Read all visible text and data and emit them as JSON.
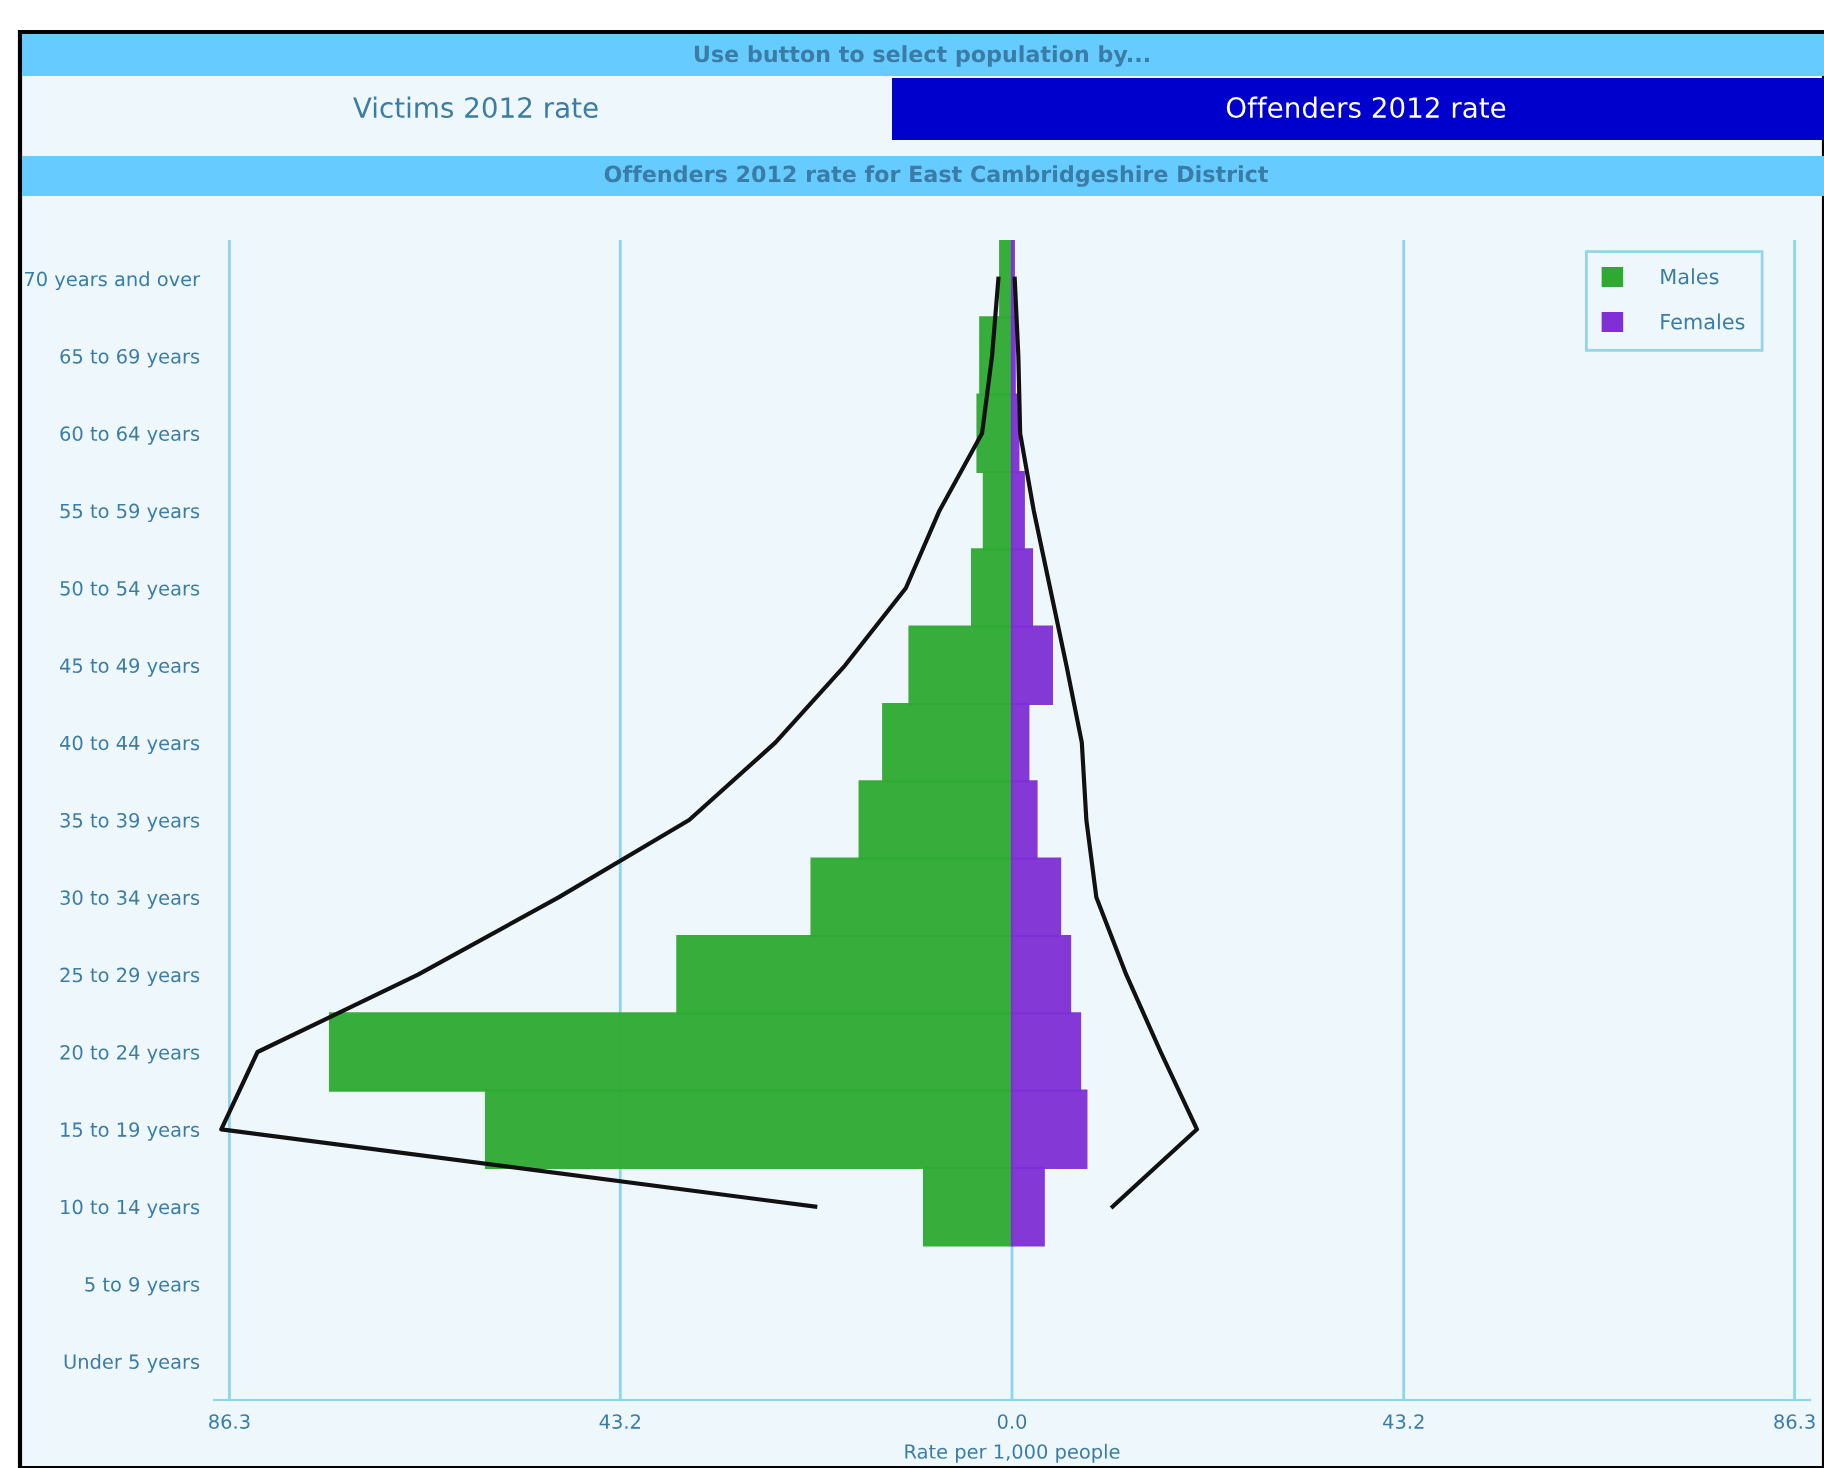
{
  "chart_data": {
    "type": "bar",
    "orientation": "horizontal",
    "title": "Offenders 2012 rate for East Cambridgeshire District",
    "annotations": [
      "Use button to select population by...",
      "Victims 2012 rate",
      "Offenders 2012 rate"
    ],
    "xlabel": "Rate per 1,000 people",
    "categories": [
      "70 years and over",
      "65 to 69 years",
      "60 to 64 years",
      "55 to 59 years",
      "50 to 54 years",
      "45 to 49 years",
      "40 to 44 years",
      "35 to 39 years",
      "30 to 34 years",
      "25 to 29 years",
      "20 to 24 years",
      "15 to 19 years",
      "10 to 14 years",
      "5 to 9 years",
      "Under 5 years"
    ],
    "series": [
      {
        "name": "Males",
        "color": "#2eaa32",
        "values": [
          -1.3,
          -3.5,
          -3.8,
          -3.1,
          -4.4,
          -11.3,
          -14.2,
          -16.8,
          -22.1,
          -36.9,
          -75.2,
          -58.0,
          -9.7,
          null,
          null
        ]
      },
      {
        "name": "Females",
        "color": "#7f2fd6",
        "values": [
          0.2,
          0.3,
          0.7,
          1.3,
          2.2,
          4.4,
          1.8,
          2.7,
          5.3,
          6.4,
          7.5,
          8.2,
          3.5,
          null,
          null
        ]
      },
      {
        "type": "line",
        "color": "#111111",
        "values": [
          -1.5,
          -2.2,
          -3.3,
          -8.0,
          -11.7,
          -18.4,
          -26.1,
          -35.6,
          -50.0,
          -65.5,
          -83.2,
          -87.2,
          -21.7,
          null,
          null
        ]
      },
      {
        "type": "line",
        "color": "#111111",
        "values": [
          0.3,
          0.7,
          0.9,
          2.4,
          4.2,
          6.0,
          7.7,
          8.2,
          9.3,
          12.6,
          16.4,
          20.4,
          11.1,
          null,
          null
        ]
      }
    ],
    "xlim": [
      -88,
      88
    ],
    "xticks": [
      {
        "value": -86.3,
        "label": "86.3"
      },
      {
        "value": -43.2,
        "label": "43.2"
      },
      {
        "value": 0,
        "label": "0.0"
      },
      {
        "value": 43.2,
        "label": "43.2"
      },
      {
        "value": 86.3,
        "label": "86.3"
      }
    ],
    "grid": "x",
    "legend": "top right"
  }
}
